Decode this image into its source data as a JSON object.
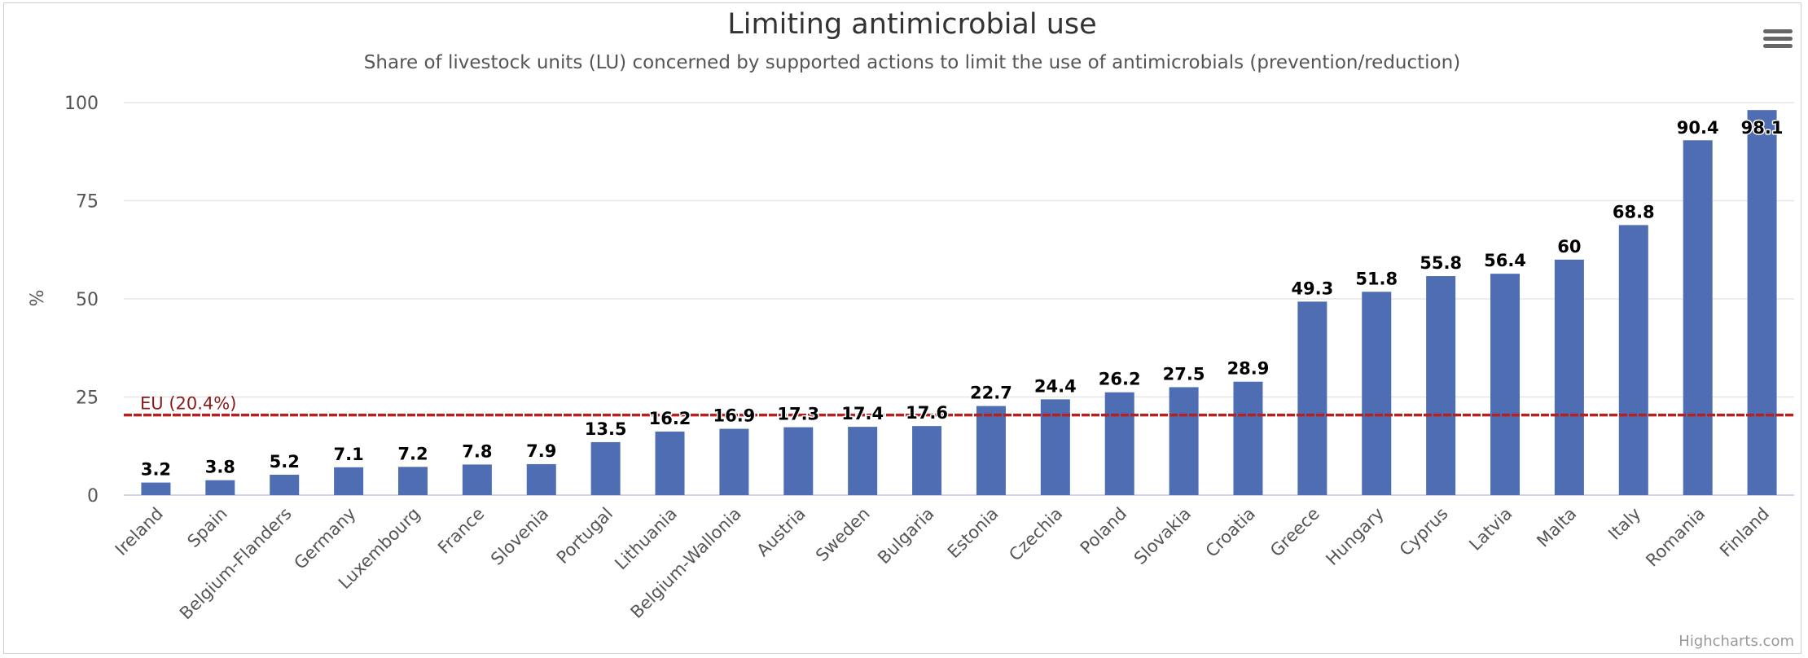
{
  "title": "Limiting antimicrobial use",
  "subtitle": "Share of livestock units (LU) concerned by supported actions to limit the use of antimicrobials (prevention/reduction)",
  "credits": "Highcharts.com",
  "menu_icon": "hamburger-menu-icon",
  "colors": {
    "bar": "#4f6db3",
    "eu_line": "#b22222",
    "eu_label": "#8b1a1a",
    "grid": "#e6e6e6"
  },
  "chart_data": {
    "type": "bar",
    "title": "Limiting antimicrobial use",
    "subtitle": "Share of livestock units (LU) concerned by supported actions to limit the use of antimicrobials (prevention/reduction)",
    "xlabel": "",
    "ylabel": "%",
    "ylim": [
      0,
      100
    ],
    "yticks": [
      0,
      25,
      50,
      75,
      100
    ],
    "grid": true,
    "legend": "none",
    "categories": [
      "Ireland",
      "Spain",
      "Belgium-Flanders",
      "Germany",
      "Luxembourg",
      "France",
      "Slovenia",
      "Portugal",
      "Lithuania",
      "Belgium-Wallonia",
      "Austria",
      "Sweden",
      "Bulgaria",
      "Estonia",
      "Czechia",
      "Poland",
      "Slovakia",
      "Croatia",
      "Greece",
      "Hungary",
      "Cyprus",
      "Latvia",
      "Malta",
      "Italy",
      "Romania",
      "Finland"
    ],
    "values": [
      3.2,
      3.8,
      5.2,
      7.1,
      7.2,
      7.8,
      7.9,
      13.5,
      16.2,
      16.9,
      17.3,
      17.4,
      17.6,
      22.7,
      24.4,
      26.2,
      27.5,
      28.9,
      49.3,
      51.8,
      55.8,
      56.4,
      60,
      68.8,
      90.4,
      98.1
    ],
    "reference_line": {
      "label": "EU (20.4%)",
      "value": 20.4,
      "style": "dashed"
    }
  }
}
